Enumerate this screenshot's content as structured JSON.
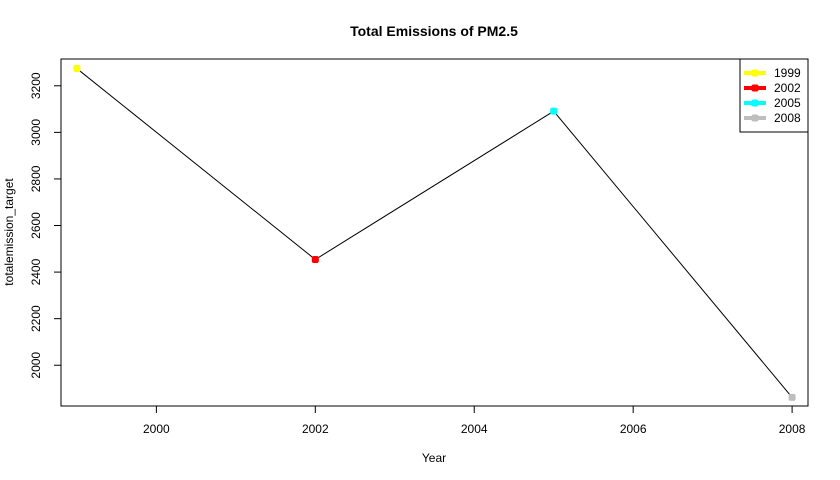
{
  "chart_data": {
    "type": "line",
    "title": "Total Emissions of PM2.5",
    "xlabel": "Year",
    "ylabel": "totalemission_target",
    "x": [
      1999,
      2002,
      2005,
      2008
    ],
    "values": [
      3274,
      2454,
      3091,
      1862
    ],
    "point_colors": [
      "#ffff00",
      "#ff0000",
      "#00ffff",
      "#bebebe"
    ],
    "line_color": "#000000",
    "xlim": [
      1998.8,
      2008.2
    ],
    "ylim": [
      1825,
      3315
    ],
    "x_ticks": [
      2000,
      2002,
      2004,
      2006,
      2008
    ],
    "y_ticks": [
      2000,
      2200,
      2400,
      2600,
      2800,
      3000,
      3200
    ],
    "grid": false,
    "legend": {
      "position": "top-right",
      "entries": [
        {
          "label": "1999",
          "color": "#ffff00"
        },
        {
          "label": "2002",
          "color": "#ff0000"
        },
        {
          "label": "2005",
          "color": "#00ffff"
        },
        {
          "label": "2008",
          "color": "#bebebe"
        }
      ]
    }
  }
}
